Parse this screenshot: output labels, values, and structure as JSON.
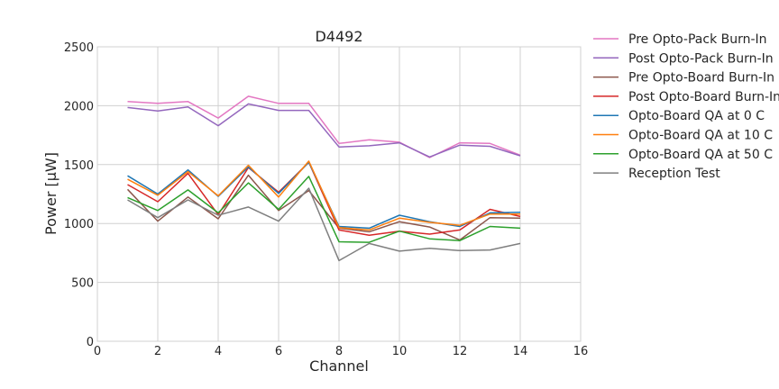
{
  "chart_data": {
    "type": "line",
    "title": "D4492",
    "xlabel": "Channel",
    "ylabel": "Power [μW]",
    "xlim": [
      0,
      16
    ],
    "ylim": [
      0,
      2500
    ],
    "xticks": [
      0,
      2,
      4,
      6,
      8,
      10,
      12,
      14,
      16
    ],
    "yticks": [
      0,
      500,
      1000,
      1500,
      2000,
      2500
    ],
    "grid": true,
    "legend_placement": "outside-right",
    "x": [
      1,
      2,
      3,
      4,
      5,
      6,
      7,
      8,
      9,
      10,
      11,
      12,
      13,
      14
    ],
    "series": [
      {
        "name": "Pre Opto-Pack Burn-In",
        "color": "#e377c2",
        "values": [
          2035,
          2020,
          2035,
          1895,
          2080,
          2020,
          2020,
          1680,
          1710,
          1690,
          1560,
          1685,
          1680,
          1580
        ]
      },
      {
        "name": "Post Opto-Pack Burn-In",
        "color": "#9467bd",
        "values": [
          1985,
          1955,
          1990,
          1830,
          2015,
          1960,
          1960,
          1650,
          1660,
          1685,
          1565,
          1665,
          1655,
          1575
        ]
      },
      {
        "name": "Pre Opto-Board Burn-In",
        "color": "#8c564b",
        "values": [
          1290,
          1020,
          1225,
          1040,
          1410,
          1110,
          1280,
          960,
          930,
          1015,
          970,
          860,
          1050,
          1045
        ]
      },
      {
        "name": "Post Opto-Board Burn-In",
        "color": "#d62728",
        "values": [
          1330,
          1185,
          1425,
          1075,
          1475,
          1265,
          1520,
          945,
          900,
          935,
          910,
          945,
          1120,
          1060
        ]
      },
      {
        "name": "Opto-Board QA at 0 C",
        "color": "#1f77b4",
        "values": [
          1405,
          1250,
          1455,
          1230,
          1480,
          1255,
          1520,
          975,
          960,
          1070,
          1015,
          975,
          1090,
          1095
        ]
      },
      {
        "name": "Opto-Board QA at 10 C",
        "color": "#ff7f0e",
        "values": [
          1375,
          1240,
          1440,
          1235,
          1495,
          1225,
          1530,
          965,
          945,
          1045,
          1010,
          985,
          1080,
          1080
        ]
      },
      {
        "name": "Opto-Board QA at 50 C",
        "color": "#2ca02c",
        "values": [
          1220,
          1110,
          1285,
          1090,
          1345,
          1120,
          1400,
          845,
          840,
          935,
          870,
          855,
          975,
          960
        ]
      },
      {
        "name": "Reception Test",
        "color": "#7f7f7f",
        "values": [
          1200,
          1050,
          1200,
          1070,
          1140,
          1020,
          1300,
          685,
          830,
          765,
          790,
          770,
          775,
          830
        ]
      }
    ]
  }
}
